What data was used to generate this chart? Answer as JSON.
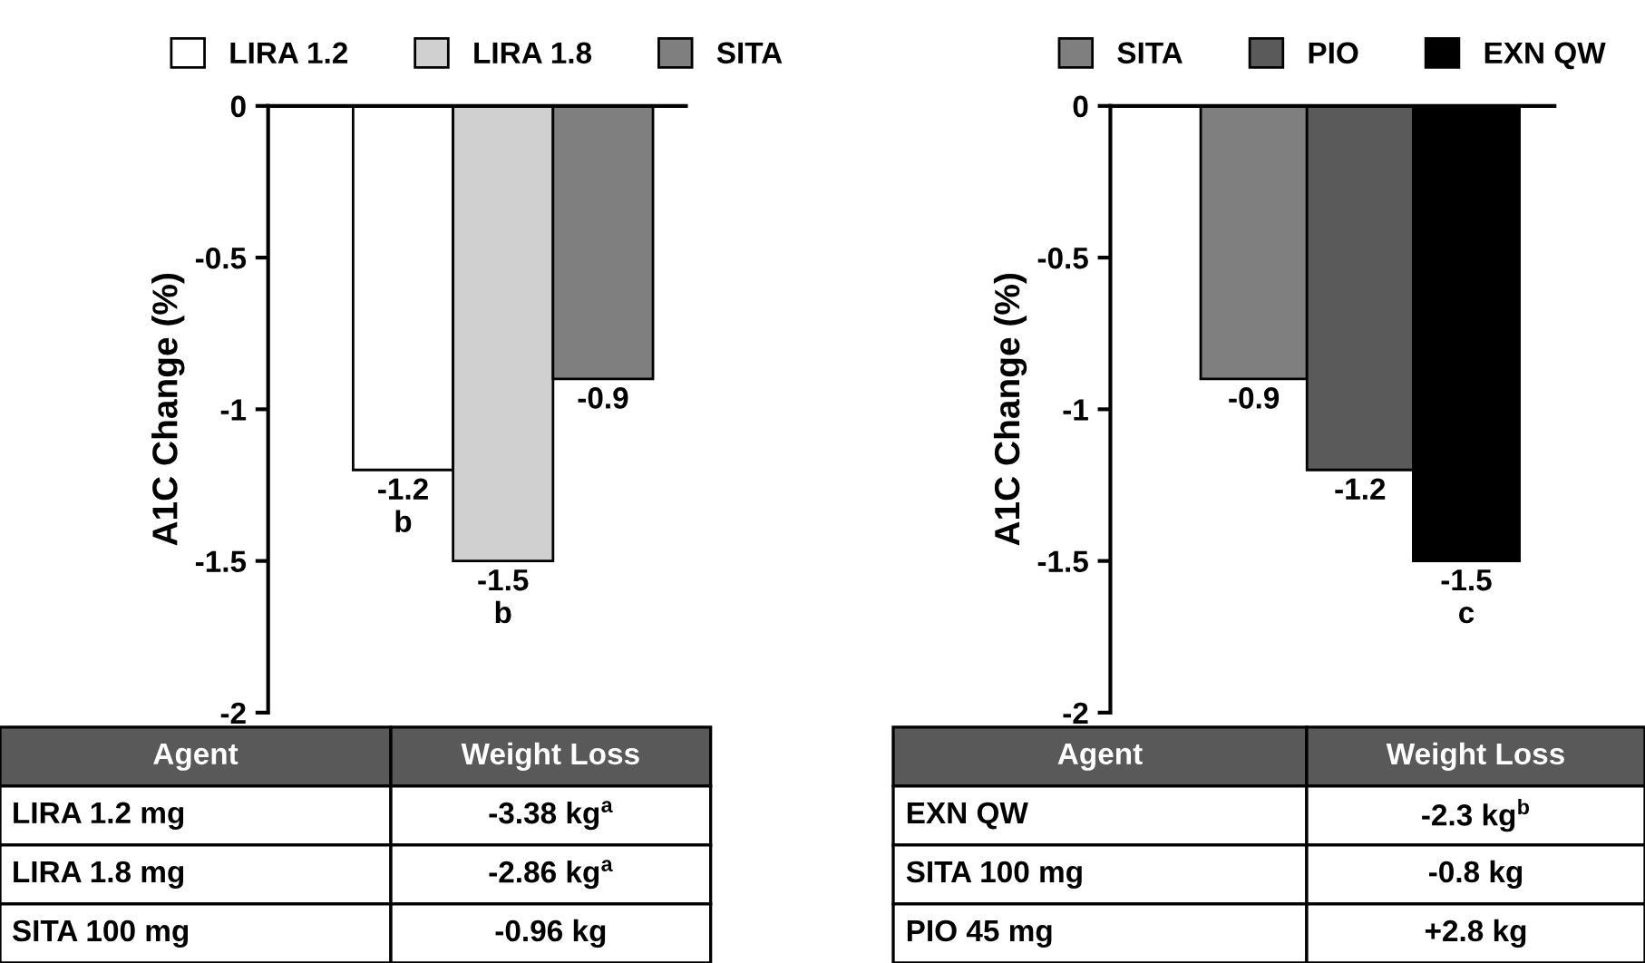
{
  "chart_data": [
    {
      "type": "bar",
      "ylabel": "A1C Change (%)",
      "categories": [
        null,
        null,
        null
      ],
      "ylim": [
        -2,
        0
      ],
      "yticks": [
        {
          "value": 0,
          "label": "0"
        },
        {
          "value": -0.5,
          "label": "-0.5"
        },
        {
          "value": -1,
          "label": "-1"
        },
        {
          "value": -1.5,
          "label": "-1.5"
        },
        {
          "value": -2,
          "label": "-2"
        }
      ],
      "tick_labels": "y",
      "grid": false,
      "legend": "top",
      "series": [
        {
          "name": "LIRA 1.2",
          "color": "#ffffff",
          "values": [
            -1.2,
            null,
            null
          ],
          "value_labels": [
            "-1.2\nb",
            null,
            null
          ]
        },
        {
          "name": "LIRA 1.8",
          "color": "#d0d0d0",
          "values": [
            null,
            -1.5,
            null
          ],
          "value_labels": [
            null,
            "-1.5\nb",
            null
          ]
        },
        {
          "name": "SITA",
          "color": "#7f7f7f",
          "values": [
            null,
            null,
            -0.9
          ],
          "value_labels": [
            null,
            null,
            "-0.9"
          ]
        }
      ],
      "annotations": [
        "Agent",
        "Weight Loss",
        "LIRA 1.2 mg",
        "-3.38 kg$^{a}$",
        "LIRA 1.8 mg",
        "-2.86 kg$^{a}$",
        "SITA 100 mg",
        "-0.96 kg"
      ]
    },
    {
      "type": "bar",
      "ylabel": "A1C Change (%)",
      "categories": [
        null,
        null,
        null
      ],
      "ylim": [
        -2,
        0
      ],
      "yticks": [
        {
          "value": 0,
          "label": "0"
        },
        {
          "value": -0.5,
          "label": "-0.5"
        },
        {
          "value": -1,
          "label": "-1"
        },
        {
          "value": -1.5,
          "label": "-1.5"
        },
        {
          "value": -2,
          "label": "-2"
        }
      ],
      "tick_labels": "y",
      "grid": false,
      "legend": "top",
      "series": [
        {
          "name": "SITA",
          "color": "#7f7f7f",
          "values": [
            -0.9,
            null,
            null
          ],
          "value_labels": [
            "-0.9",
            null,
            null
          ]
        },
        {
          "name": "PIO",
          "color": "#5a5a5a",
          "values": [
            null,
            -1.2,
            null
          ],
          "value_labels": [
            null,
            "-1.2",
            null
          ]
        },
        {
          "name": "EXN QW",
          "color": "#000000",
          "values": [
            null,
            null,
            -1.5
          ],
          "value_labels": [
            null,
            null,
            "-1.5\nc"
          ]
        }
      ],
      "annotations": [
        "Agent",
        "Weight Loss",
        "EXN QW",
        "-2.3 kg$^{b}$",
        "SITA 100 mg",
        "-0.8 kg",
        "PIO 45 mg",
        "+2.8 kg"
      ]
    }
  ]
}
